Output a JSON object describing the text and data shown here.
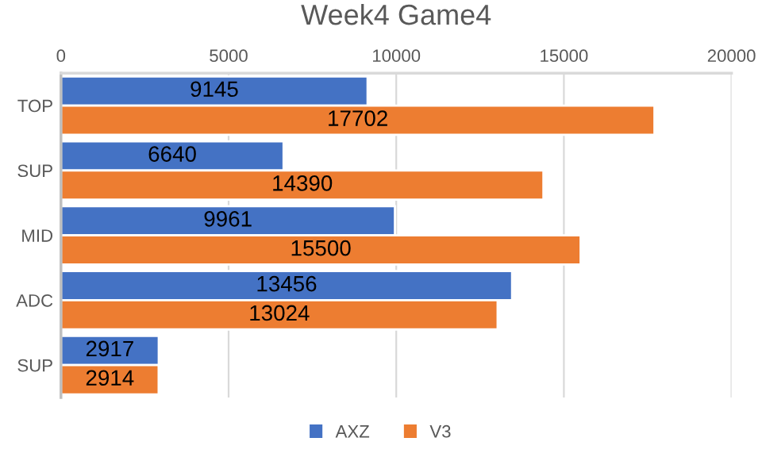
{
  "chart_data": {
    "type": "bar",
    "orientation": "horizontal",
    "title": "Week4 Game4",
    "categories": [
      "TOP",
      "SUP",
      "MID",
      "ADC",
      "SUP"
    ],
    "series": [
      {
        "name": "AXZ",
        "color": "#4472c4",
        "values": [
          9145,
          6640,
          9961,
          13456,
          2917
        ]
      },
      {
        "name": "V3",
        "color": "#ed7d31",
        "values": [
          17702,
          14390,
          15500,
          13024,
          2914
        ]
      }
    ],
    "xlim": [
      0,
      20000
    ],
    "xticks": [
      0,
      5000,
      10000,
      15000,
      20000
    ],
    "grid": "x",
    "legend": "bottom",
    "data_labels": true
  }
}
